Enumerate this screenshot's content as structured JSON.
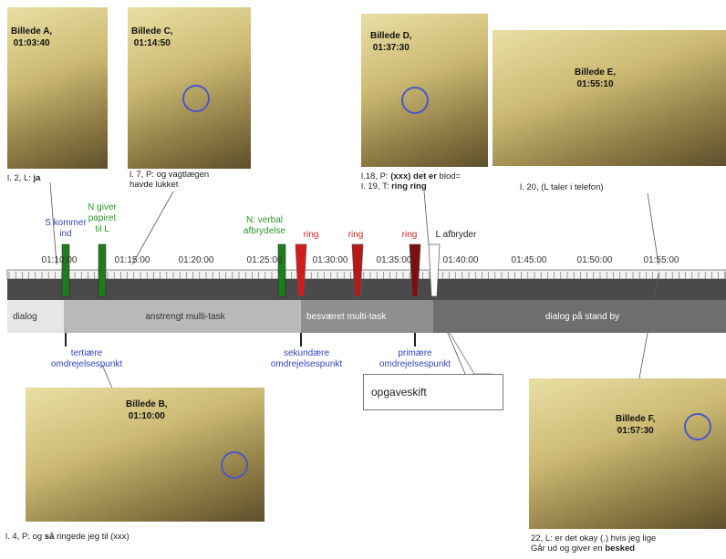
{
  "photos": [
    {
      "label": [
        "Billede A,",
        "01:03:40"
      ],
      "caption": [
        [
          {
            "text": "l. 2, L:  "
          },
          {
            "text": "ja",
            "bold": true
          }
        ]
      ]
    },
    {
      "label": [
        "Billede C,",
        "01:14:50"
      ],
      "caption": [
        [
          {
            "text": "l. 7, P:  og vagtlægen"
          }
        ],
        [
          {
            "text": "havde lukket"
          }
        ]
      ]
    },
    {
      "label": [
        "Billede D,",
        "01:37:30"
      ],
      "caption": [
        [
          {
            "text": "l.18, P:  "
          },
          {
            "text": "(xxx) det er",
            "bold": true
          },
          {
            "text": " blod="
          }
        ],
        [
          {
            "text": "l. 19, T:  "
          },
          {
            "text": "ring ring",
            "bold": true
          }
        ]
      ]
    },
    {
      "label": [
        "Billede E,",
        "01:55:10"
      ],
      "caption": [
        [
          {
            "text": "l. 20, (L taler i telefon)"
          }
        ]
      ]
    },
    {
      "label": [
        "Billede B,",
        "01:10:00"
      ],
      "caption": [
        [
          {
            "text": "l. 4, P:  og "
          },
          {
            "text": "så",
            "bold": true
          },
          {
            "text": " ringede jeg til (xxx)"
          }
        ]
      ]
    },
    {
      "label": [
        "Billede F,",
        "01:57:30"
      ],
      "caption": [
        [
          {
            "text": "22, L:    er det okay (.) hvis jeg lige"
          }
        ],
        [
          {
            "text": "Går ud og giver en "
          },
          {
            "text": "besked",
            "bold": true
          }
        ]
      ]
    }
  ],
  "timeline": {
    "times": [
      "01:10:00",
      "01:15:00",
      "01:20:00",
      "01:25:00",
      "01:30:00",
      "01:35:00",
      "01:40:00",
      "01:45:00",
      "01:50:00",
      "01:55:00"
    ],
    "events": [
      {
        "text": [
          "S kommer",
          "ind"
        ],
        "color": "#3446c4",
        "flag": "#1e7d1e"
      },
      {
        "text": [
          "N giver",
          "papiret",
          "til L"
        ],
        "color": "#2a9a2a",
        "flag": "#1e7d1e"
      },
      {
        "text": [
          "N: verbal",
          "afbrydelse"
        ],
        "color": "#2a9a2a",
        "flag": "#1e7d1e"
      },
      {
        "text": [
          "ring"
        ],
        "color": "#e02020",
        "flag": "#d41c1c"
      },
      {
        "text": [
          "ring"
        ],
        "color": "#e02020",
        "flag": "#b81818"
      },
      {
        "text": [
          "ring"
        ],
        "color": "#e02020",
        "flag": "#7a1010"
      },
      {
        "text": [
          "L afbryder"
        ],
        "color": "#222222",
        "flag": "#ffffff"
      }
    ],
    "segments": [
      "dialog",
      "anstrengt multi-task",
      "besværet multi-task",
      "dialog på stand by"
    ],
    "pivots": [
      [
        "tertiære",
        "omdrejelsespunkt"
      ],
      [
        "sekundære",
        "omdrejelsespunkt"
      ],
      [
        "primære",
        "omdrejelsespunkt"
      ]
    ],
    "callout": "opgaveskift"
  }
}
